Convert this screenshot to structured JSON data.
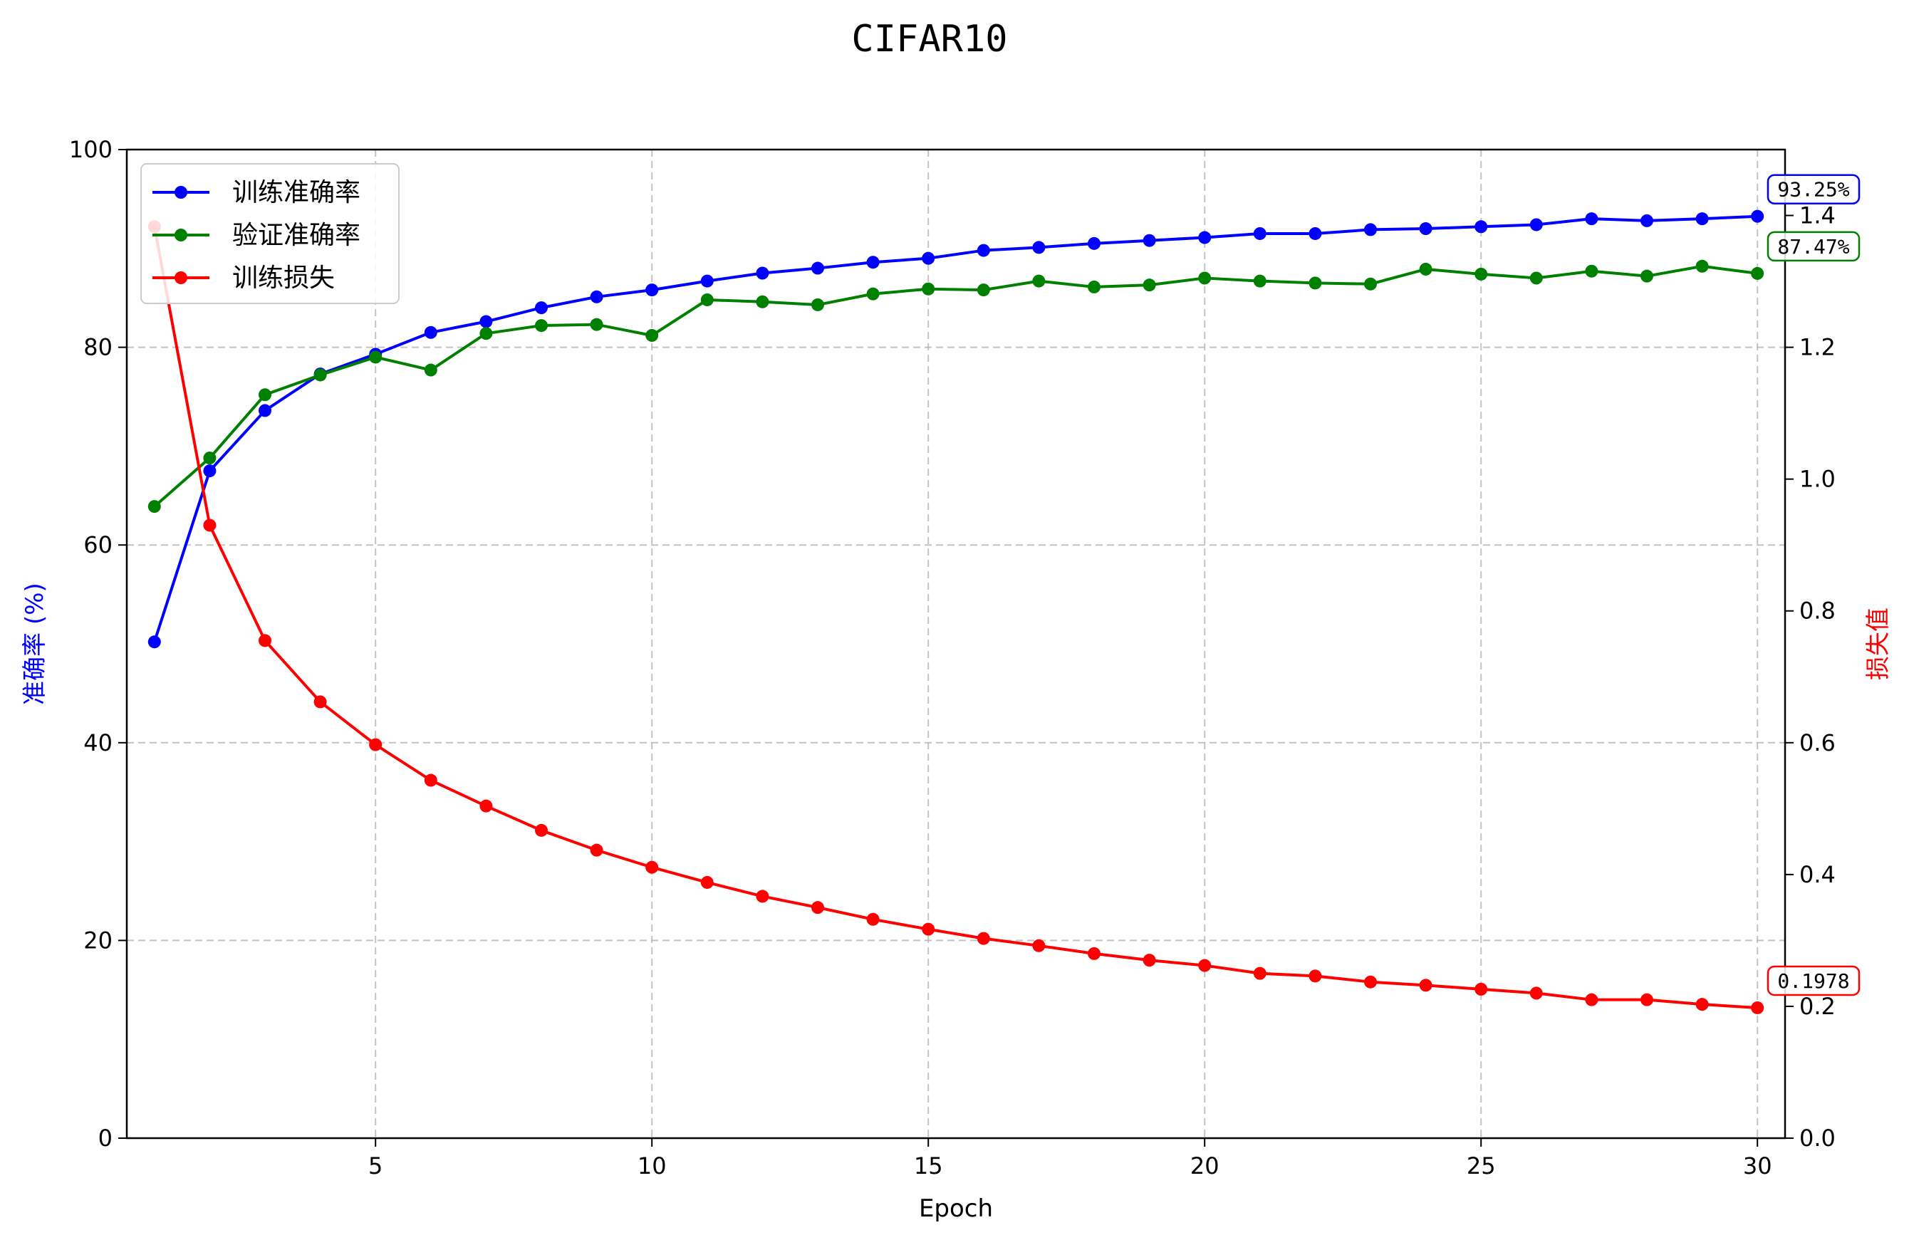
{
  "chart_data": {
    "type": "line",
    "title": "CIFAR10",
    "xlabel": "Epoch",
    "ylabel_left": "准确率 (%)",
    "ylabel_right": "损失值",
    "xlim": [
      0.5,
      30.5
    ],
    "ylim_left": [
      0,
      100
    ],
    "ylim_right": [
      0,
      1.5
    ],
    "x_ticks": [
      5,
      10,
      15,
      20,
      25,
      30
    ],
    "y_ticks_left": [
      0,
      20,
      40,
      60,
      80,
      100
    ],
    "y_ticks_right": [
      "0.0",
      "0.2",
      "0.4",
      "0.6",
      "0.8",
      "1.0",
      "1.2",
      "1.4"
    ],
    "grid": true,
    "legend_position": "top-left",
    "x": [
      1,
      2,
      3,
      4,
      5,
      6,
      7,
      8,
      9,
      10,
      11,
      12,
      13,
      14,
      15,
      16,
      17,
      18,
      19,
      20,
      21,
      22,
      23,
      24,
      25,
      26,
      27,
      28,
      29,
      30
    ],
    "series": [
      {
        "name": "训练准确率",
        "axis": "left",
        "color": "#0000ff",
        "values": [
          50.2,
          67.5,
          73.6,
          77.3,
          79.3,
          81.5,
          82.6,
          84.0,
          85.1,
          85.8,
          86.7,
          87.5,
          88.0,
          88.6,
          89.0,
          89.8,
          90.1,
          90.5,
          90.8,
          91.1,
          91.5,
          91.5,
          91.9,
          92.0,
          92.2,
          92.4,
          93.0,
          92.8,
          93.0,
          93.25
        ]
      },
      {
        "name": "验证准确率",
        "axis": "left",
        "color": "#008000",
        "values": [
          63.9,
          68.8,
          75.2,
          77.2,
          79.0,
          77.7,
          81.4,
          82.2,
          82.3,
          81.2,
          84.8,
          84.6,
          84.3,
          85.4,
          85.9,
          85.8,
          86.7,
          86.1,
          86.3,
          87.0,
          86.7,
          86.5,
          86.4,
          87.9,
          87.4,
          87.0,
          87.7,
          87.2,
          88.2,
          87.47
        ]
      },
      {
        "name": "训练损失",
        "axis": "right",
        "color": "#ff0000",
        "values": [
          1.383,
          0.93,
          0.755,
          0.662,
          0.597,
          0.543,
          0.504,
          0.467,
          0.437,
          0.411,
          0.388,
          0.367,
          0.35,
          0.332,
          0.317,
          0.303,
          0.292,
          0.28,
          0.27,
          0.262,
          0.25,
          0.246,
          0.237,
          0.232,
          0.226,
          0.22,
          0.21,
          0.21,
          0.203,
          0.1978
        ]
      }
    ],
    "annotations": [
      {
        "text": "93.25%",
        "series": 0,
        "color": "#0000ff"
      },
      {
        "text": "87.47%",
        "series": 1,
        "color": "#008000"
      },
      {
        "text": "0.1978",
        "series": 2,
        "color": "#ff0000"
      }
    ]
  }
}
